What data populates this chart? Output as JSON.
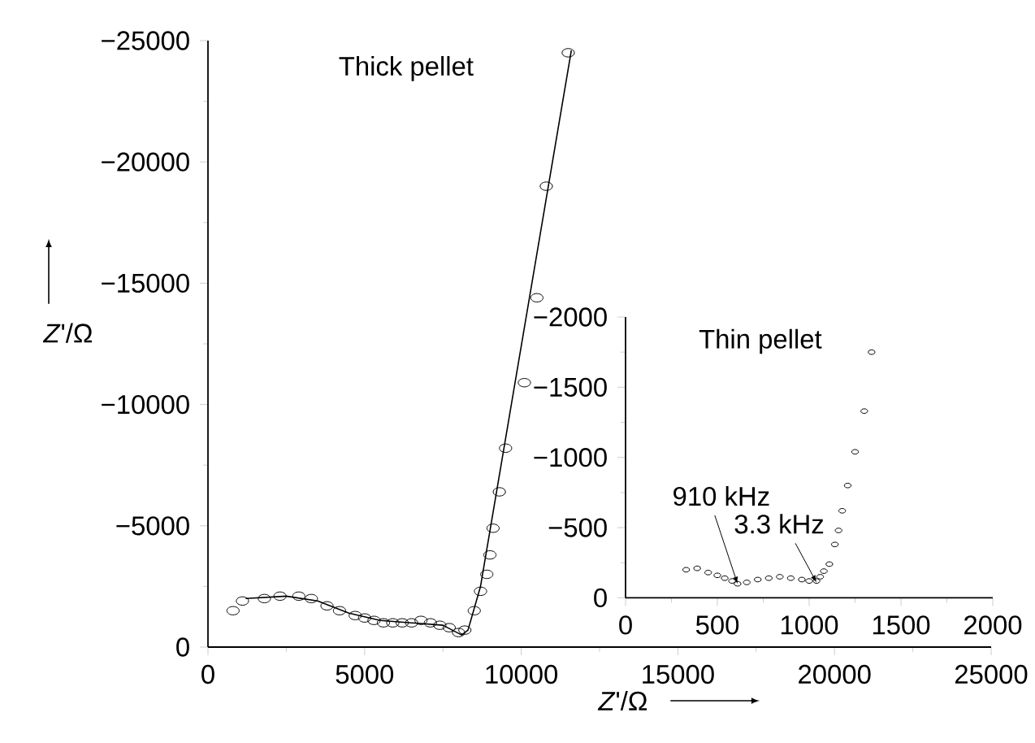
{
  "chart_data": [
    {
      "type": "scatter",
      "title": "Thick pellet",
      "xlabel": "*Z*'/Ω",
      "ylabel": "*Z*'/Ω",
      "xlim": [
        0,
        25000
      ],
      "ylim": [
        0,
        -25000
      ],
      "xticks": [
        0,
        5000,
        10000,
        15000,
        20000,
        25000
      ],
      "yticks": [
        {
          "value": 0,
          "label": "0"
        },
        {
          "value": -5000,
          "label": "−5000"
        },
        {
          "value": -10000,
          "label": "−10000"
        },
        {
          "value": -15000,
          "label": "−15000"
        },
        {
          "value": -20000,
          "label": "−20000"
        },
        {
          "value": -25000,
          "label": "−25000"
        }
      ],
      "marker": "circle",
      "grid": false,
      "series": [
        {
          "type": "scatter",
          "color": "#000000",
          "x": [
            800,
            1100,
            1800,
            2300,
            2900,
            3300,
            3800,
            4200,
            4700,
            5000,
            5300,
            5600,
            5900,
            6200,
            6500,
            6800,
            7100,
            7400,
            7700,
            8000,
            8200,
            8500,
            8700,
            8900,
            9000,
            9100,
            9300,
            9500,
            10100,
            10500,
            10800,
            11500
          ],
          "values": [
            -1500,
            -1900,
            -2000,
            -2100,
            -2100,
            -2000,
            -1700,
            -1500,
            -1300,
            -1200,
            -1100,
            -1000,
            -1000,
            -1000,
            -1000,
            -1100,
            -1000,
            -900,
            -800,
            -600,
            -700,
            -1500,
            -2300,
            -3000,
            -3800,
            -4900,
            -6400,
            -8200,
            -10900,
            -14400,
            -19000,
            -24500
          ]
        },
        {
          "type": "line",
          "color": "#000000",
          "marker": "none",
          "x": [
            1200,
            2500,
            3500,
            4500,
            5500,
            6500,
            7500,
            8100,
            8300,
            8700,
            11600
          ],
          "values": [
            -2000,
            -2100,
            -1900,
            -1400,
            -1100,
            -1000,
            -900,
            -500,
            -700,
            -2500,
            -24600
          ]
        }
      ]
    },
    {
      "type": "scatter",
      "title": "Thin pellet",
      "xlim": [
        0,
        2000
      ],
      "ylim": [
        0,
        -2000
      ],
      "xticks": [
        0,
        500,
        1000,
        1500,
        2000
      ],
      "yticks": [
        {
          "value": 0,
          "label": "0"
        },
        {
          "value": -500,
          "label": "−500"
        },
        {
          "value": -1000,
          "label": "−1000"
        },
        {
          "value": -1500,
          "label": "−1500"
        },
        {
          "value": -2000,
          "label": "−2000"
        }
      ],
      "marker": "circle",
      "grid": false,
      "annotations": [
        {
          "text": "910 kHz",
          "x": 610,
          "y": -100
        },
        {
          "text": "3.3 kHz",
          "x": 1040,
          "y": -110
        }
      ],
      "series": [
        {
          "color": "#000000",
          "x": [
            330,
            390,
            450,
            500,
            540,
            580,
            610,
            660,
            720,
            780,
            840,
            900,
            960,
            1000,
            1040,
            1060,
            1080,
            1110,
            1140,
            1160,
            1180,
            1210,
            1250,
            1300,
            1340
          ],
          "values": [
            -200,
            -210,
            -180,
            -160,
            -140,
            -120,
            -100,
            -110,
            -130,
            -140,
            -150,
            -140,
            -130,
            -120,
            -120,
            -150,
            -190,
            -240,
            -380,
            -480,
            -620,
            -800,
            -1040,
            -1330,
            -1750
          ]
        }
      ]
    }
  ]
}
